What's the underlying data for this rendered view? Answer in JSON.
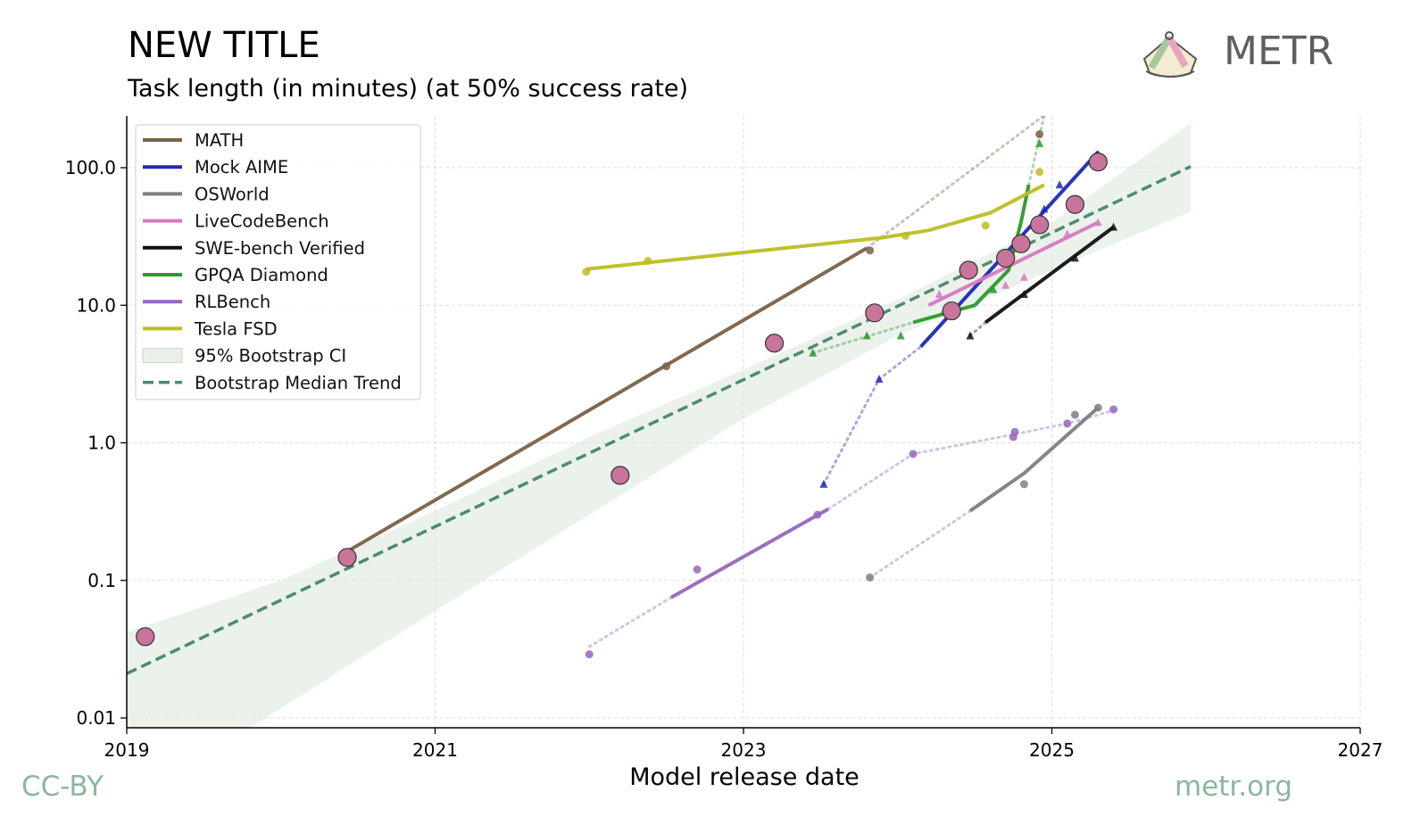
{
  "header": {
    "title": "NEW TITLE",
    "subtitle": "Task length (in minutes) (at 50% success rate)"
  },
  "brand": {
    "name": "METR",
    "icon": "metr-logo-icon"
  },
  "footer": {
    "license": "CC-BY",
    "site": "metr.org"
  },
  "chart_data": {
    "type": "scatter",
    "title": "NEW TITLE",
    "subtitle": "Task length (in minutes) (at 50% success rate)",
    "xlabel": "Model release date",
    "ylabel": "",
    "x_ticks": [
      "2019",
      "2021",
      "2023",
      "2025",
      "2027"
    ],
    "y_ticks": [
      "0.01",
      "0.1",
      "1.0",
      "10.0",
      "100.0"
    ],
    "xlim": [
      2019.0,
      2027.0
    ],
    "ylim": [
      0.0085,
      240
    ],
    "y_scale": "log",
    "grid": true,
    "legend_position": "top-left",
    "legend": [
      "MATH",
      "Mock AIME",
      "OSWorld",
      "LiveCodeBench",
      "SWE-bench Verified",
      "GPQA Diamond",
      "RLBench",
      "Tesla FSD",
      "95% Bootstrap CI",
      "Bootstrap Median Trend"
    ],
    "band": {
      "name": "95% Bootstrap CI",
      "color": "#d8e6da",
      "upper": [
        [
          2019.0,
          0.042
        ],
        [
          2020.0,
          0.1
        ],
        [
          2021.0,
          0.32
        ],
        [
          2022.0,
          1.1
        ],
        [
          2023.0,
          3.4
        ],
        [
          2024.0,
          11
        ],
        [
          2025.0,
          40
        ],
        [
          2025.9,
          210
        ]
      ],
      "lower": [
        [
          2019.0,
          0.0085
        ],
        [
          2019.8,
          0.0085
        ],
        [
          2021.0,
          0.06
        ],
        [
          2022.0,
          0.3
        ],
        [
          2023.0,
          1.5
        ],
        [
          2024.0,
          6
        ],
        [
          2025.0,
          18
        ],
        [
          2025.9,
          48
        ]
      ]
    },
    "trend": {
      "name": "Bootstrap Median Trend",
      "color": "#4d8c6c",
      "points": [
        [
          2019.0,
          0.021
        ],
        [
          2025.9,
          102
        ]
      ]
    },
    "series": [
      {
        "name": "MATH",
        "color": "#7a6148",
        "marker": "circle",
        "points": [
          [
            2020.42,
            0.16
          ],
          [
            2022.5,
            3.6
          ],
          [
            2023.82,
            25
          ],
          [
            2024.92,
            175
          ]
        ],
        "fit": [
          [
            2020.42,
            0.16
          ],
          [
            2023.8,
            26
          ]
        ],
        "fit_extension": [
          [
            2023.8,
            26
          ],
          [
            2024.95,
            240
          ]
        ]
      },
      {
        "name": "Mock AIME",
        "color": "#1f29b5",
        "marker": "triangle",
        "points": [
          [
            2023.52,
            0.5
          ],
          [
            2023.88,
            2.9
          ],
          [
            2024.95,
            50
          ],
          [
            2025.05,
            75
          ],
          [
            2025.3,
            125
          ]
        ],
        "fit": [
          [
            2024.15,
            5
          ],
          [
            2025.3,
            130
          ]
        ],
        "fit_extension": [
          [
            2023.52,
            0.5
          ],
          [
            2023.88,
            2.9
          ],
          [
            2024.15,
            5
          ]
        ]
      },
      {
        "name": "OSWorld",
        "color": "#7f7f7f",
        "marker": "circle",
        "points": [
          [
            2023.82,
            0.105
          ],
          [
            2024.82,
            0.5
          ],
          [
            2025.15,
            1.6
          ],
          [
            2025.3,
            1.8
          ]
        ],
        "fit": [
          [
            2024.47,
            0.32
          ],
          [
            2024.82,
            0.6
          ],
          [
            2025.3,
            1.8
          ]
        ],
        "fit_extension": [
          [
            2023.82,
            0.105
          ],
          [
            2024.47,
            0.32
          ]
        ]
      },
      {
        "name": "LiveCodeBench",
        "color": "#d778c3",
        "marker": "triangle",
        "points": [
          [
            2024.27,
            12
          ],
          [
            2024.7,
            14
          ],
          [
            2024.82,
            16
          ],
          [
            2025.1,
            33
          ],
          [
            2025.3,
            40
          ]
        ],
        "fit": [
          [
            2024.2,
            10
          ],
          [
            2025.3,
            40
          ]
        ],
        "fit_extension": []
      },
      {
        "name": "SWE-bench Verified",
        "color": "#111111",
        "marker": "triangle",
        "points": [
          [
            2024.47,
            6
          ],
          [
            2024.82,
            12
          ],
          [
            2025.15,
            22
          ],
          [
            2025.4,
            37
          ]
        ],
        "fit": [
          [
            2024.57,
            7.5
          ],
          [
            2025.4,
            37
          ]
        ],
        "fit_extension": [
          [
            2024.47,
            6
          ],
          [
            2024.57,
            7.5
          ]
        ]
      },
      {
        "name": "GPQA Diamond",
        "color": "#2a9a2a",
        "marker": "triangle",
        "points": [
          [
            2023.45,
            4.5
          ],
          [
            2023.8,
            6
          ],
          [
            2024.02,
            6
          ],
          [
            2024.3,
            9
          ],
          [
            2024.62,
            13
          ],
          [
            2024.92,
            150
          ]
        ],
        "fit": [
          [
            2024.1,
            7.5
          ],
          [
            2024.5,
            10
          ],
          [
            2024.72,
            18
          ],
          [
            2024.8,
            40
          ],
          [
            2024.85,
            75
          ]
        ],
        "fit_extension": [
          [
            2023.45,
            4.5
          ],
          [
            2024.1,
            7.5
          ]
        ],
        "fit_extension_after": [
          [
            2024.85,
            75
          ],
          [
            2024.95,
            240
          ]
        ]
      },
      {
        "name": "RLBench",
        "color": "#9467bd",
        "marker": "circle",
        "points": [
          [
            2022.0,
            0.029
          ],
          [
            2022.7,
            0.12
          ],
          [
            2023.48,
            0.3
          ],
          [
            2024.1,
            0.83
          ],
          [
            2024.75,
            1.1
          ],
          [
            2024.76,
            1.2
          ],
          [
            2025.1,
            1.38
          ],
          [
            2025.4,
            1.75
          ]
        ],
        "fit": [
          [
            2022.53,
            0.075
          ],
          [
            2023.55,
            0.33
          ]
        ],
        "fit_extension": [
          [
            2022.0,
            0.033
          ],
          [
            2022.53,
            0.075
          ]
        ],
        "fit_extension_after": [
          [
            2023.55,
            0.33
          ],
          [
            2024.1,
            0.83
          ],
          [
            2024.75,
            1.15
          ],
          [
            2025.1,
            1.38
          ],
          [
            2025.4,
            1.72
          ]
        ]
      },
      {
        "name": "Tesla FSD",
        "color": "#bdbd22",
        "marker": "circle",
        "points": [
          [
            2021.98,
            17.5
          ],
          [
            2022.38,
            21
          ],
          [
            2024.05,
            32
          ],
          [
            2024.57,
            38
          ],
          [
            2024.92,
            93
          ]
        ],
        "fit": [
          [
            2021.98,
            18.3
          ],
          [
            2023.9,
            31
          ],
          [
            2024.2,
            35
          ],
          [
            2024.6,
            47
          ],
          [
            2024.95,
            75
          ]
        ],
        "fit_extension": []
      }
    ],
    "headline_points": {
      "color": "#c9749a",
      "points": [
        [
          2019.12,
          0.039
        ],
        [
          2020.43,
          0.147
        ],
        [
          2022.2,
          0.58
        ],
        [
          2023.2,
          5.3
        ],
        [
          2023.85,
          8.8
        ],
        [
          2024.35,
          9.1
        ],
        [
          2024.46,
          18
        ],
        [
          2024.7,
          22
        ],
        [
          2024.8,
          28
        ],
        [
          2024.92,
          38.5
        ],
        [
          2025.15,
          54
        ],
        [
          2025.3,
          110
        ]
      ]
    }
  }
}
